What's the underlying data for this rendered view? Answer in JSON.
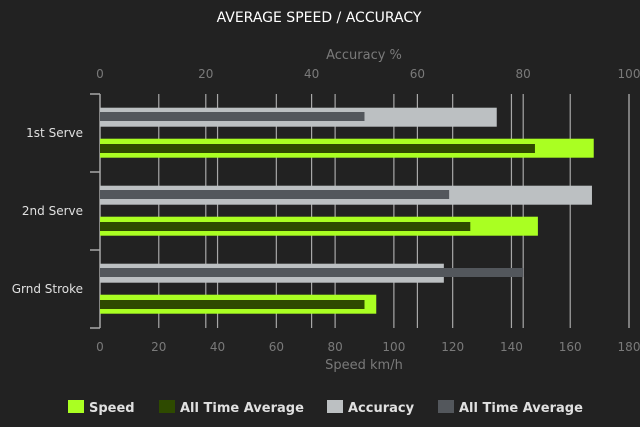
{
  "chart_data": {
    "type": "bar",
    "orientation": "horizontal",
    "title": "AVERAGE SPEED / ACCURACY",
    "categories": [
      "1st Serve",
      "2nd Serve",
      "Grnd Stroke"
    ],
    "x_axis_bottom": {
      "label": "Speed km/h",
      "range": [
        0,
        180
      ],
      "ticks": [
        0,
        20,
        40,
        60,
        80,
        100,
        120,
        140,
        160,
        180
      ]
    },
    "x_axis_top": {
      "label": "Accuracy %",
      "range": [
        0,
        100
      ],
      "ticks": [
        0,
        20,
        40,
        60,
        80,
        100
      ]
    },
    "grid": true,
    "legend_placement": "bottom",
    "series": [
      {
        "name": "Speed",
        "axis": "speed",
        "color": "#aaff22",
        "values": [
          168,
          149,
          94
        ]
      },
      {
        "name": "All Time Average",
        "axis": "speed",
        "color": "#2e4a00",
        "values": [
          148,
          126,
          90
        ]
      },
      {
        "name": "Accuracy",
        "axis": "accuracy",
        "color": "#bcc0c2",
        "values": [
          75,
          93,
          65
        ]
      },
      {
        "name": "All Time Average",
        "axis": "accuracy",
        "color": "#53575c",
        "values": [
          50,
          66,
          80
        ]
      }
    ],
    "background": "#222222"
  }
}
